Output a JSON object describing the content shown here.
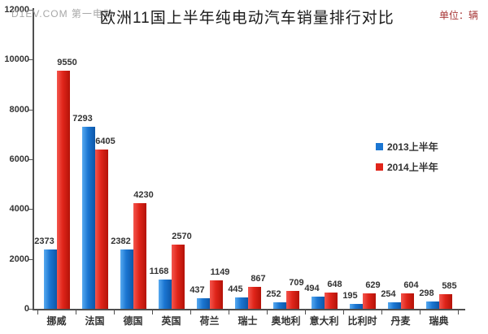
{
  "header": {
    "watermark": "D1EV.COM 第一电动",
    "unit_label": "单位：辆"
  },
  "chart_data": {
    "type": "bar",
    "title": "欧洲11国上半年纯电动汽车销量排行对比",
    "xlabel": "",
    "ylabel": "",
    "unit": "辆",
    "categories": [
      "挪威",
      "法国",
      "德国",
      "英国",
      "荷兰",
      "瑞士",
      "奥地利",
      "意大利",
      "比利时",
      "丹麦",
      "瑞典"
    ],
    "series": [
      {
        "name": "2013上半年",
        "color": "#1b76d2",
        "values": [
          2373,
          7293,
          2382,
          1168,
          437,
          445,
          252,
          494,
          195,
          254,
          298
        ]
      },
      {
        "name": "2014上半年",
        "color": "#e0251a",
        "values": [
          9550,
          6405,
          4230,
          2570,
          1149,
          867,
          709,
          648,
          629,
          604,
          585
        ]
      }
    ],
    "ylim": [
      0,
      12000
    ],
    "yticks": [
      0,
      2000,
      4000,
      6000,
      8000,
      10000,
      12000
    ],
    "grid": false,
    "legend_position": "middle-right",
    "data_labels": true
  }
}
